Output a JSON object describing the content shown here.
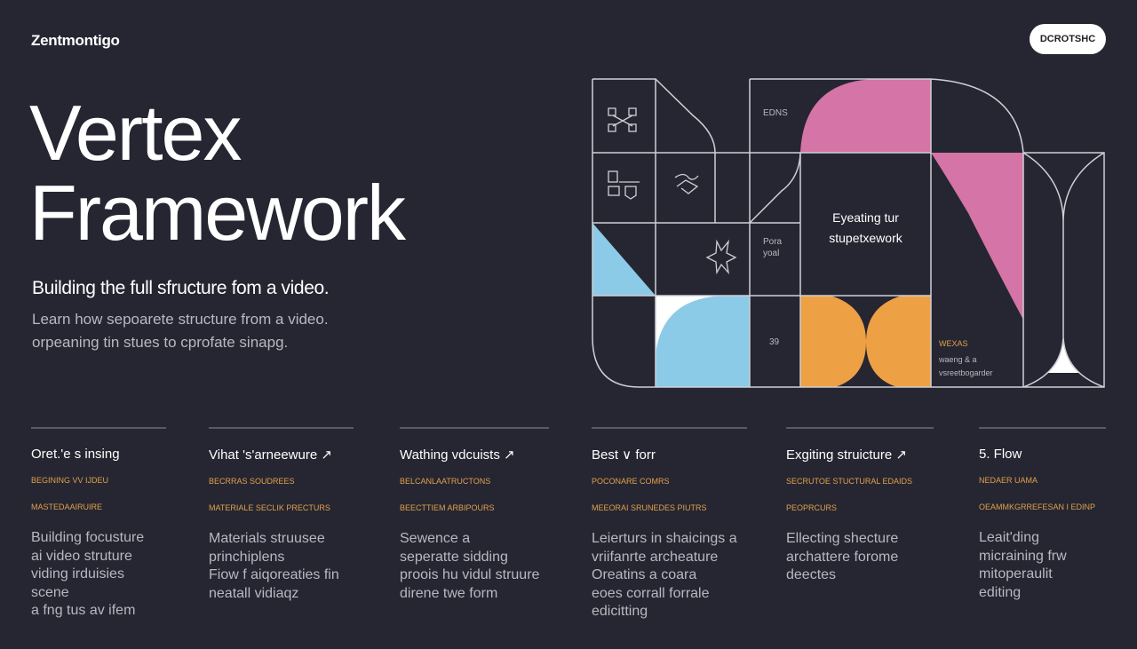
{
  "brand": "Zentmontigo",
  "cta_label": "DCROTSHC",
  "hero": {
    "title_line1": "Vertex",
    "title_line2": "Framework",
    "subtitle": "Building the full sfructure fom a video.",
    "desc_line1": "Learn how sepoarete structure from a video.",
    "desc_line2": "orpeaning tin stues to cprofate sinapg."
  },
  "graphic": {
    "label_edns": "EDNS",
    "center_line1": "Eyeating tur",
    "center_line2": "stupetxework",
    "side_line1": "Pora",
    "side_line2": "yoal",
    "side_num": "39",
    "note_tag": "WEXAS",
    "note_line1": "waeng & a",
    "note_line2": "vsreetbogarder"
  },
  "colors": {
    "background": "#262632",
    "pink": "#d574a6",
    "blue": "#8ccbe8",
    "orange": "#eea045",
    "accent_text": "#e0a04a"
  },
  "columns": [
    {
      "title": "Oret.'e s insing",
      "tag1": "BEGINING VV IJDEU",
      "tag2": "MASTEDAAIRUIRE",
      "body": [
        "Building focusture",
        "ai video struture",
        "viding irduisies scene",
        "a fng tus av ifem"
      ]
    },
    {
      "title": "Vihat 's'arneewure ↗",
      "tag1": "BECRRAS SOUDREES",
      "tag2": "MATERIALE SECLIK PRECTURS",
      "body": [
        "Materials struusee",
        "princhiplens",
        "Fiow f aiqoreaties fin",
        "neatall vidiaqz"
      ]
    },
    {
      "title": "Wathing vdcuists ↗",
      "tag1": "BELCANLAATRUCTONS",
      "tag2": "BEECTTIEM ARBIPOURS",
      "body": [
        "Sewence a",
        "seperatte sidding",
        "proois hu vidul struure",
        "direne twe form"
      ]
    },
    {
      "title": "Best ∨ forr",
      "tag1": "POCONARE COMRS",
      "tag2": "MEEORAI SRUNEDES PIUTRS",
      "body": [
        "Leierturs in shaicings a",
        "vriifanrte archeature",
        "Oreatins a coara",
        "eoes corrall forrale",
        "edicitting"
      ]
    },
    {
      "title": "Exgiting struicture ↗",
      "tag1": "SECRUTOE STUCTURAL EDAIDS",
      "tag2": "PEOPRCURS",
      "body": [
        "Ellecting shecture",
        "archattere forome",
        "deectes"
      ]
    },
    {
      "title": "5.  Flow",
      "tag1": "NEDAER UAMA",
      "tag2": "OEAMMKGRREFESAN I EDINP",
      "body": [
        "Leait'ding",
        "micraining frw",
        "mitoperaulit",
        "editing"
      ]
    }
  ]
}
